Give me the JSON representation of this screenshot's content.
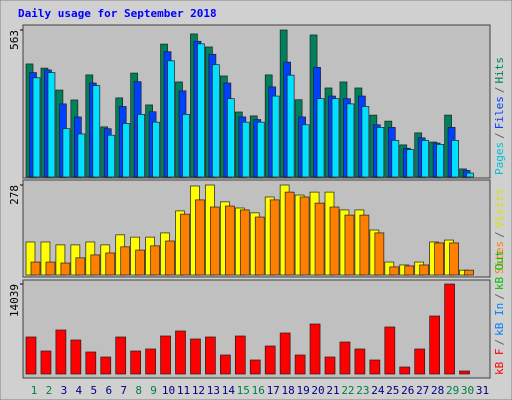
{
  "chart_data": {
    "type": "bar",
    "title": "Daily usage for September 2018",
    "categories": [
      "1",
      "2",
      "3",
      "4",
      "5",
      "6",
      "7",
      "8",
      "9",
      "10",
      "11",
      "12",
      "13",
      "14",
      "15",
      "16",
      "17",
      "18",
      "19",
      "20",
      "21",
      "22",
      "23",
      "24",
      "25",
      "26",
      "27",
      "28",
      "29",
      "30",
      "31"
    ],
    "weekend_days": [
      "1",
      "2",
      "8",
      "9",
      "15",
      "16",
      "22",
      "23",
      "29",
      "30"
    ],
    "weekend_color": "#008040",
    "weekday_color": "#000080",
    "legend_separator": "/",
    "panels": [
      {
        "ylim": [
          0,
          563
        ],
        "yticks": [
          563
        ],
        "legend": [
          {
            "name": "Pages",
            "color": "#00c0e0"
          },
          {
            "name": "Files",
            "color": "#0040ff"
          },
          {
            "name": "Hits",
            "color": "#008060"
          }
        ],
        "series": [
          {
            "name": "Hits",
            "color": "#00805c",
            "values": [
              433,
              417,
              333,
              295,
              391,
              192,
              303,
              398,
              276,
              509,
              364,
              548,
              498,
              387,
              249,
              234,
              391,
              563,
              296,
              544,
              341,
              364,
              341,
              237,
              214,
              123,
              169,
              134,
              237,
              31,
              0
            ]
          },
          {
            "name": "Files",
            "color": "#0040ff",
            "values": [
              400,
              410,
              280,
              230,
              360,
              185,
              270,
              365,
              250,
              480,
              330,
              520,
              470,
              360,
              230,
              220,
              345,
              440,
              230,
              420,
              310,
              300,
              310,
              200,
              190,
              110,
              150,
              130,
              190,
              25,
              0
            ]
          },
          {
            "name": "Pages",
            "color": "#00e0ff",
            "values": [
              380,
              400,
              185,
              165,
              350,
              160,
              205,
              240,
              210,
              445,
              240,
              510,
              430,
              300,
              210,
              210,
              310,
              390,
              200,
              300,
              300,
              280,
              270,
              190,
              140,
              105,
              140,
              125,
              140,
              15,
              0
            ]
          }
        ]
      },
      {
        "ylim": [
          0,
          278
        ],
        "yticks": [
          278
        ],
        "legend": [
          {
            "name": "Sites",
            "color": "#ff8000"
          },
          {
            "name": "Visits",
            "color": "#e0e000"
          }
        ],
        "series": [
          {
            "name": "Visits",
            "color": "#ffff00",
            "values": [
              102,
              102,
              93,
              93,
              102,
              93,
              124,
              117,
              117,
              130,
              198,
              275,
              278,
              226,
              207,
              192,
              241,
              278,
              247,
              256,
              256,
              201,
              201,
              139,
              40,
              31,
              40,
              102,
              108,
              15,
              0
            ]
          },
          {
            "name": "Sites",
            "color": "#ff8000",
            "values": [
              40,
              40,
              37,
              53,
              62,
              68,
              87,
              77,
              90,
              105,
              188,
              232,
              210,
              213,
              201,
              179,
              232,
              256,
              241,
              222,
              210,
              185,
              185,
              130,
              25,
              28,
              31,
              99,
              99,
              15,
              0
            ]
          }
        ]
      },
      {
        "ylim": [
          0,
          14039
        ],
        "yticks": [
          14039
        ],
        "legend": [
          {
            "name": "kB F",
            "color": "#ff0000"
          },
          {
            "name": "kB In",
            "color": "#0080ff"
          },
          {
            "name": "kB Out",
            "color": "#00c000"
          }
        ],
        "series": [
          {
            "name": "kB F",
            "color": "#ff0000",
            "values": [
              5772,
              3588,
              6864,
              5304,
              3432,
              2652,
              5772,
              3588,
              3900,
              5928,
              6708,
              5460,
              5772,
              2964,
              5928,
              2184,
              4368,
              6396,
              2964,
              7800,
              2652,
              4992,
              3900,
              2184,
              7332,
              1092,
              3900,
              9048,
              14039,
              468,
              0
            ]
          }
        ]
      }
    ]
  }
}
